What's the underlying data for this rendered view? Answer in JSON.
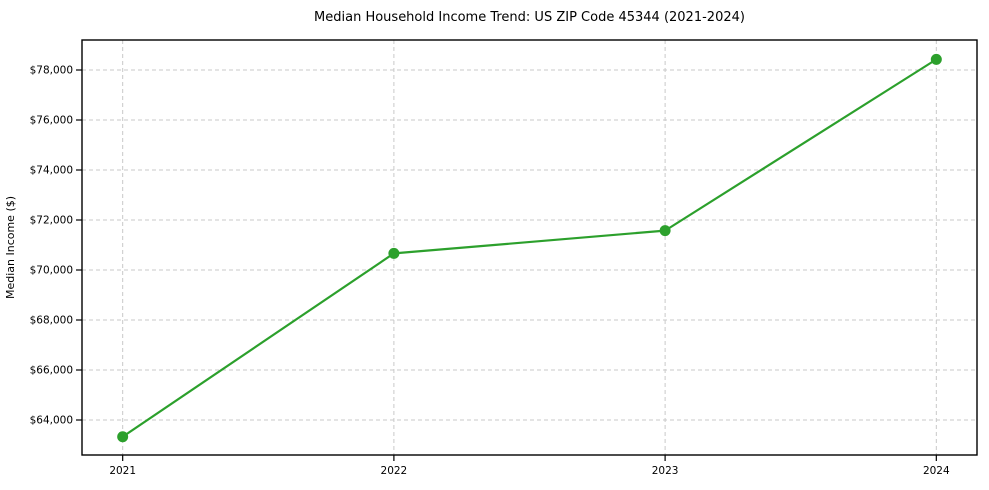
{
  "chart_data": {
    "type": "line",
    "title": "Median Household Income Trend: US ZIP Code 45344 (2021-2024)",
    "xlabel": "",
    "ylabel": "Median Income ($)",
    "x": [
      2021,
      2022,
      2023,
      2024
    ],
    "x_tick_labels": [
      "2021",
      "2022",
      "2023",
      "2024"
    ],
    "series": [
      {
        "name": "Median Household Income",
        "values": [
          63330,
          70665,
          71575,
          78425
        ],
        "color": "#2ca02c",
        "marker": "circle"
      }
    ],
    "y_ticks": [
      64000,
      66000,
      68000,
      70000,
      72000,
      74000,
      76000,
      78000
    ],
    "y_tick_labels": [
      "$64,000",
      "$66,000",
      "$68,000",
      "$70,000",
      "$72,000",
      "$74,000",
      "$76,000",
      "$78,000"
    ],
    "ylim": [
      62600,
      79200
    ],
    "xlim": [
      2020.85,
      2024.15
    ],
    "grid": true,
    "grid_style": "dashed",
    "legend_position": "none"
  },
  "colors": {
    "line": "#2ca02c",
    "grid": "#c9c9c9",
    "axis": "#000000",
    "background": "#ffffff",
    "text": "#000000"
  }
}
